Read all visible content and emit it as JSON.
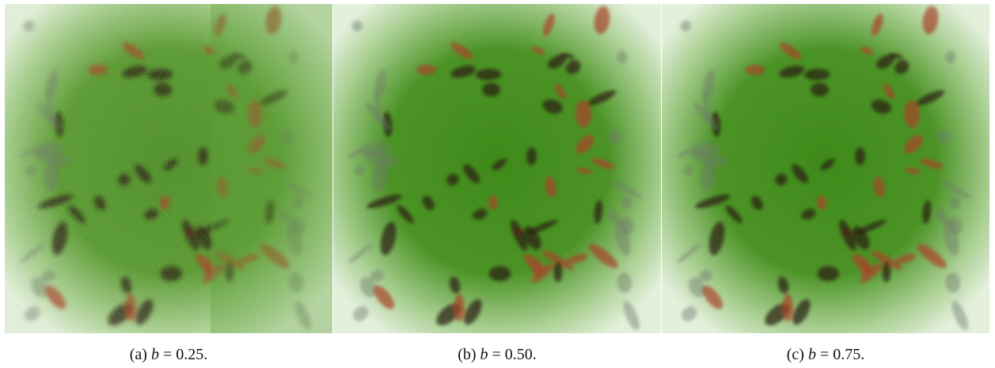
{
  "panels": [
    {
      "label": "(a)",
      "var": "b",
      "rest": "= 0.25."
    },
    {
      "label": "(b)",
      "var": "b",
      "rest": "= 0.50."
    },
    {
      "label": "(c)",
      "var": "b",
      "rest": "= 0.75."
    }
  ]
}
